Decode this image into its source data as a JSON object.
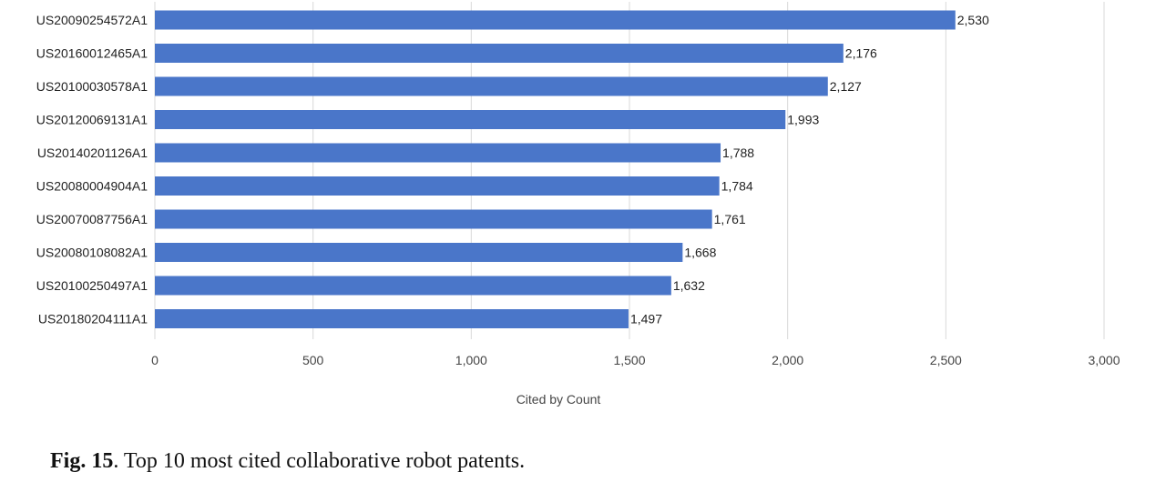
{
  "chart_data": {
    "type": "bar",
    "orientation": "horizontal",
    "categories": [
      "US20090254572A1",
      "US20160012465A1",
      "US20100030578A1",
      "US20120069131A1",
      "US20140201126A1",
      "US20080004904A1",
      "US20070087756A1",
      "US20080108082A1",
      "US20100250497A1",
      "US20180204111A1"
    ],
    "values": [
      2530,
      2176,
      2127,
      1993,
      1788,
      1784,
      1761,
      1668,
      1632,
      1497
    ],
    "value_labels": [
      "2,530",
      "2,176",
      "2,127",
      "1,993",
      "1,788",
      "1,784",
      "1,761",
      "1,668",
      "1,632",
      "1,497"
    ],
    "xlabel": "Cited by Count",
    "ylabel": "",
    "xlim": [
      0,
      3000
    ],
    "xticks": [
      0,
      500,
      1000,
      1500,
      2000,
      2500,
      3000
    ],
    "xtick_labels": [
      "0",
      "500",
      "1,000",
      "1,500",
      "2,000",
      "2,500",
      "3,000"
    ],
    "grid": "vertical",
    "bar_color": "#4a76c9",
    "grid_color": "#d9d9d9"
  },
  "caption": {
    "label": "Fig. 15",
    "text": ". Top 10 most cited collaborative robot patents."
  }
}
